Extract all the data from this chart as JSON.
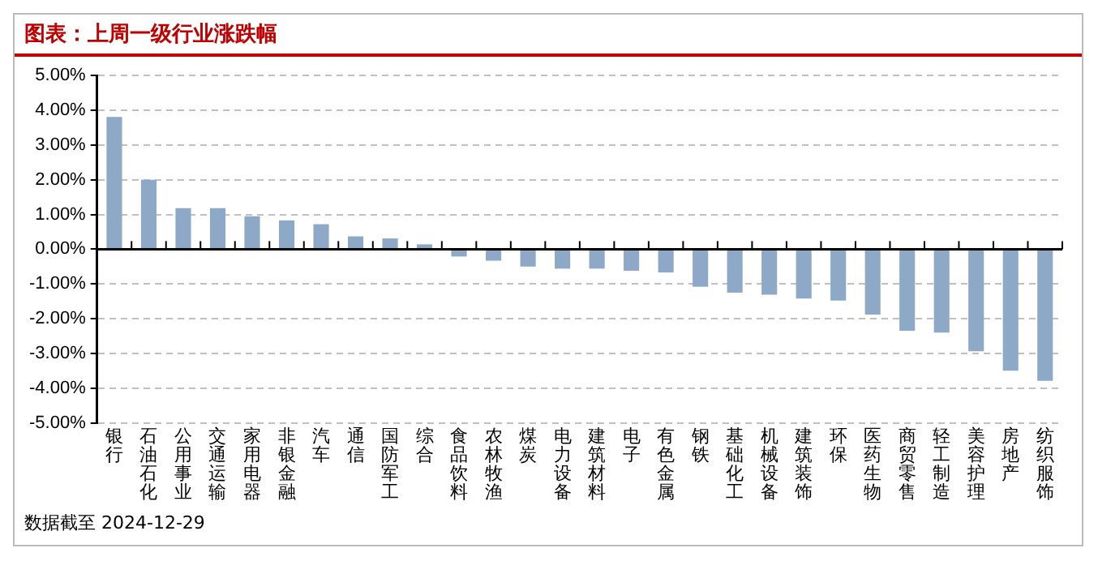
{
  "chart_data": {
    "type": "bar",
    "title": "图表：上周一级行业涨跌幅",
    "categories": [
      "银行",
      "石油石化",
      "公用事业",
      "交通运输",
      "家用电器",
      "非银金融",
      "汽车",
      "通信",
      "国防军工",
      "综合",
      "食品饮料",
      "农林牧渔",
      "煤炭",
      "电力设备",
      "建筑材料",
      "电子",
      "有色金属",
      "钢铁",
      "基础化工",
      "机械设备",
      "建筑装饰",
      "环保",
      "医药生物",
      "商贸零售",
      "轻工制造",
      "美容护理",
      "房地产",
      "纺织服饰"
    ],
    "values": [
      3.81,
      2.0,
      1.18,
      1.18,
      0.95,
      0.83,
      0.72,
      0.37,
      0.31,
      0.14,
      -0.21,
      -0.33,
      -0.5,
      -0.56,
      -0.56,
      -0.62,
      -0.67,
      -1.08,
      -1.25,
      -1.31,
      -1.42,
      -1.48,
      -1.88,
      -2.35,
      -2.4,
      -2.94,
      -3.5,
      -3.79
    ],
    "color": "#8ea9c8",
    "ylim": [
      -5,
      5
    ],
    "yticks": [
      {
        "value": -5,
        "label": "-5.00%"
      },
      {
        "value": -4,
        "label": "-4.00%"
      },
      {
        "value": -3,
        "label": "-3.00%"
      },
      {
        "value": -2,
        "label": "-2.00%"
      },
      {
        "value": -1,
        "label": "-1.00%"
      },
      {
        "value": 0,
        "label": "0.00%"
      },
      {
        "value": 1,
        "label": "1.00%"
      },
      {
        "value": 2,
        "label": "2.00%"
      },
      {
        "value": 3,
        "label": "3.00%"
      },
      {
        "value": 4,
        "label": "4.00%"
      },
      {
        "value": 5,
        "label": "5.00%"
      }
    ],
    "grid": "y",
    "legend": false,
    "annotations": [
      "数据截至 2024-12-29"
    ]
  }
}
